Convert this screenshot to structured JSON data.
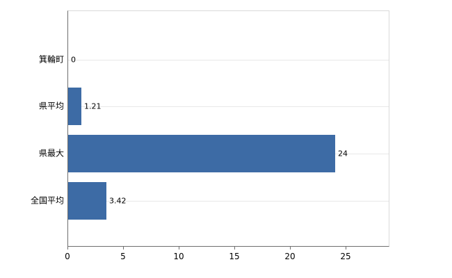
{
  "chart_data": {
    "type": "bar",
    "orientation": "horizontal",
    "title": "",
    "xlabel": "",
    "ylabel": "",
    "categories": [
      "箕輪町",
      "県平均",
      "県最大",
      "全国平均"
    ],
    "values": [
      0,
      1.21,
      24,
      3.42
    ],
    "value_labels": [
      "0",
      "1.21",
      "24",
      "3.42"
    ],
    "x_ticks": [
      0,
      5,
      10,
      15,
      20,
      25
    ],
    "x_tick_labels": [
      "0",
      "5",
      "10",
      "15",
      "20",
      "25"
    ],
    "xlim": [
      0,
      28.9
    ],
    "grid": true,
    "legend": "none",
    "bar_color": "#3d6ba5",
    "grid_color": "#e8e8e8",
    "axis_color": "#6e6e6e",
    "background_color": "#ffffff"
  }
}
